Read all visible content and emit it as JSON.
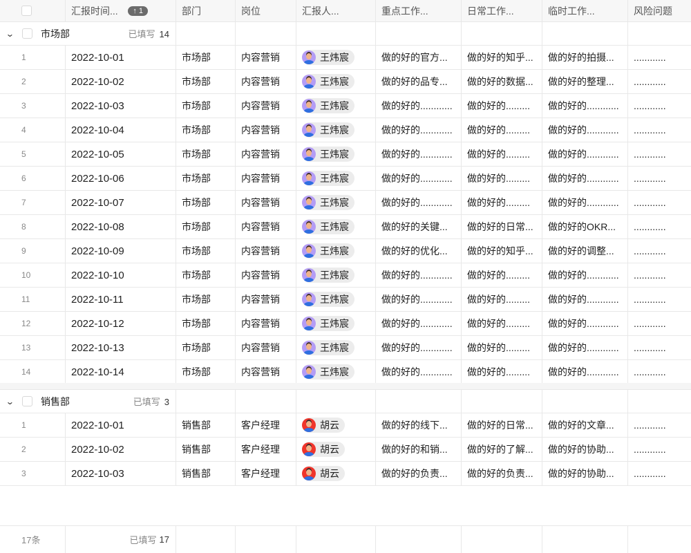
{
  "columns": [
    "汇报时间...",
    "部门",
    "岗位",
    "汇报人...",
    "重点工作...",
    "日常工作...",
    "临时工作...",
    "风险问题"
  ],
  "sort_badge": "↑ 1",
  "groups": [
    {
      "name": "市场部",
      "filled_label": "已填写",
      "filled_count": "14",
      "avatar_color": "#b49cf5",
      "rows": [
        [
          "1",
          "2022-10-01",
          "市场部",
          "内容营销",
          "王炜宸",
          "做的好的官方...",
          "做的好的知乎...",
          "做的好的拍摄...",
          "............"
        ],
        [
          "2",
          "2022-10-02",
          "市场部",
          "内容营销",
          "王炜宸",
          "做的好的品专...",
          "做的好的数据...",
          "做的好的整理...",
          "............"
        ],
        [
          "3",
          "2022-10-03",
          "市场部",
          "内容营销",
          "王炜宸",
          "做的好的............",
          "做的好的.........",
          "做的好的............",
          "............"
        ],
        [
          "4",
          "2022-10-04",
          "市场部",
          "内容营销",
          "王炜宸",
          "做的好的............",
          "做的好的.........",
          "做的好的............",
          "............"
        ],
        [
          "5",
          "2022-10-05",
          "市场部",
          "内容营销",
          "王炜宸",
          "做的好的............",
          "做的好的.........",
          "做的好的............",
          "............"
        ],
        [
          "6",
          "2022-10-06",
          "市场部",
          "内容营销",
          "王炜宸",
          "做的好的............",
          "做的好的.........",
          "做的好的............",
          "............"
        ],
        [
          "7",
          "2022-10-07",
          "市场部",
          "内容营销",
          "王炜宸",
          "做的好的............",
          "做的好的.........",
          "做的好的............",
          "............"
        ],
        [
          "8",
          "2022-10-08",
          "市场部",
          "内容营销",
          "王炜宸",
          "做的好的关键...",
          "做的好的日常...",
          "做的好的OKR...",
          "............"
        ],
        [
          "9",
          "2022-10-09",
          "市场部",
          "内容营销",
          "王炜宸",
          "做的好的优化...",
          "做的好的知乎...",
          "做的好的调整...",
          "............"
        ],
        [
          "10",
          "2022-10-10",
          "市场部",
          "内容营销",
          "王炜宸",
          "做的好的............",
          "做的好的.........",
          "做的好的............",
          "............"
        ],
        [
          "11",
          "2022-10-11",
          "市场部",
          "内容营销",
          "王炜宸",
          "做的好的............",
          "做的好的.........",
          "做的好的............",
          "............"
        ],
        [
          "12",
          "2022-10-12",
          "市场部",
          "内容营销",
          "王炜宸",
          "做的好的............",
          "做的好的.........",
          "做的好的............",
          "............"
        ],
        [
          "13",
          "2022-10-13",
          "市场部",
          "内容营销",
          "王炜宸",
          "做的好的............",
          "做的好的.........",
          "做的好的............",
          "............"
        ],
        [
          "14",
          "2022-10-14",
          "市场部",
          "内容营销",
          "王炜宸",
          "做的好的............",
          "做的好的.........",
          "做的好的............",
          "............"
        ]
      ]
    },
    {
      "name": "销售部",
      "filled_label": "已填写",
      "filled_count": "3",
      "avatar_color": "#f0352b",
      "rows": [
        [
          "1",
          "2022-10-01",
          "销售部",
          "客户经理",
          "胡云",
          "做的好的线下...",
          "做的好的日常...",
          "做的好的文章...",
          "............"
        ],
        [
          "2",
          "2022-10-02",
          "销售部",
          "客户经理",
          "胡云",
          "做的好的和销...",
          "做的好的了解...",
          "做的好的协助...",
          "............"
        ],
        [
          "3",
          "2022-10-03",
          "销售部",
          "客户经理",
          "胡云",
          "做的好的负责...",
          "做的好的负责...",
          "做的好的协助...",
          "............"
        ]
      ]
    }
  ],
  "footer": {
    "total": "17条",
    "filled_label": "已填写",
    "filled_count": "17"
  }
}
